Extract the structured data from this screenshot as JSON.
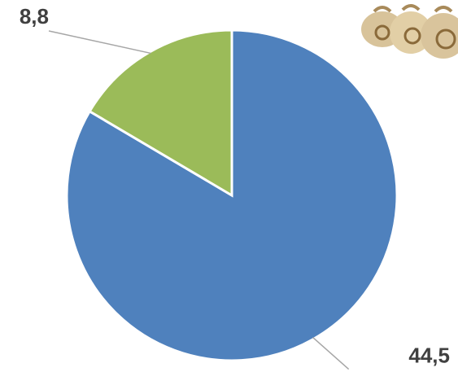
{
  "chart_data": {
    "type": "pie",
    "values": [
      44.5,
      8.8
    ],
    "value_labels": [
      "44,5",
      "8,8"
    ],
    "colors": [
      "#4f81bd",
      "#9bbb59"
    ]
  }
}
